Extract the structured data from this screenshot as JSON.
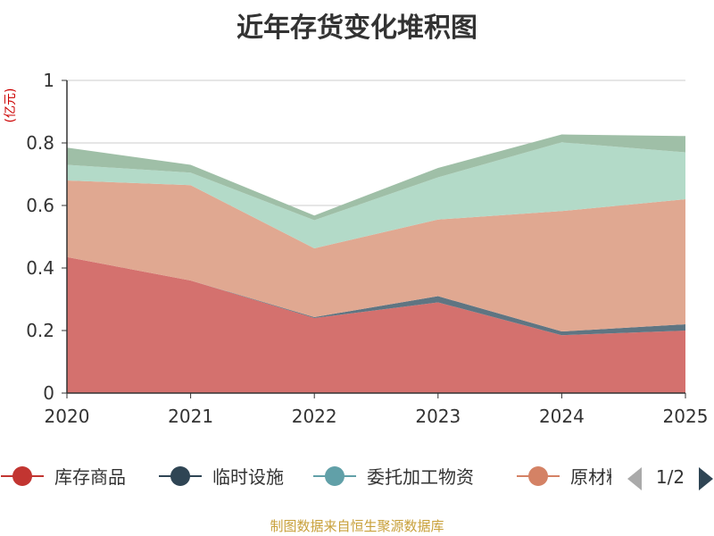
{
  "title": "近年存货变化堆积图",
  "unit_label": "(亿元)",
  "source_note": "制图数据来自恒生聚源数据库",
  "legend_page": "1/2",
  "colors": {
    "axis": "#333333",
    "grid": "#cccccc",
    "unit": "#cc0000",
    "pager_active": "#2f4554",
    "pager_inactive": "#aaaaaa"
  },
  "chart_data": {
    "type": "area",
    "stacked": true,
    "x": [
      "2020",
      "2021",
      "2022",
      "2023",
      "2024",
      "2025"
    ],
    "ylim": [
      0,
      1
    ],
    "yticks": [
      "0",
      "0.2",
      "0.4",
      "0.6",
      "0.8",
      "1"
    ],
    "grid": true,
    "legend_position": "bottom",
    "series": [
      {
        "name": "库存商品",
        "legend_color": "#c23531",
        "fill": "#d4716e",
        "values": [
          0.435,
          0.36,
          0.24,
          0.29,
          0.185,
          0.2
        ]
      },
      {
        "name": "临时设施",
        "legend_color": "#2f4554",
        "fill": "#5f7582",
        "values": [
          0.0,
          0.0,
          0.003,
          0.02,
          0.012,
          0.02
        ]
      },
      {
        "name": "委托加工物资",
        "legend_color": "#61a0a8",
        "fill": "#8fbfc4",
        "values": [
          0.0,
          0.0,
          0.0,
          0.0,
          0.0,
          0.0
        ]
      },
      {
        "name": "原材料",
        "legend_color": "#d48265",
        "fill": "#e0a891",
        "values": [
          0.245,
          0.305,
          0.22,
          0.245,
          0.385,
          0.4
        ]
      },
      {
        "name": "",
        "legend_color": "#91c7ae",
        "fill": "#b3dac8",
        "values": [
          0.05,
          0.04,
          0.09,
          0.135,
          0.22,
          0.15
        ]
      },
      {
        "name": "",
        "legend_color": "#8fb19b",
        "fill": "#9fbfa7",
        "values": [
          0.055,
          0.025,
          0.015,
          0.03,
          0.025,
          0.052
        ]
      }
    ]
  }
}
